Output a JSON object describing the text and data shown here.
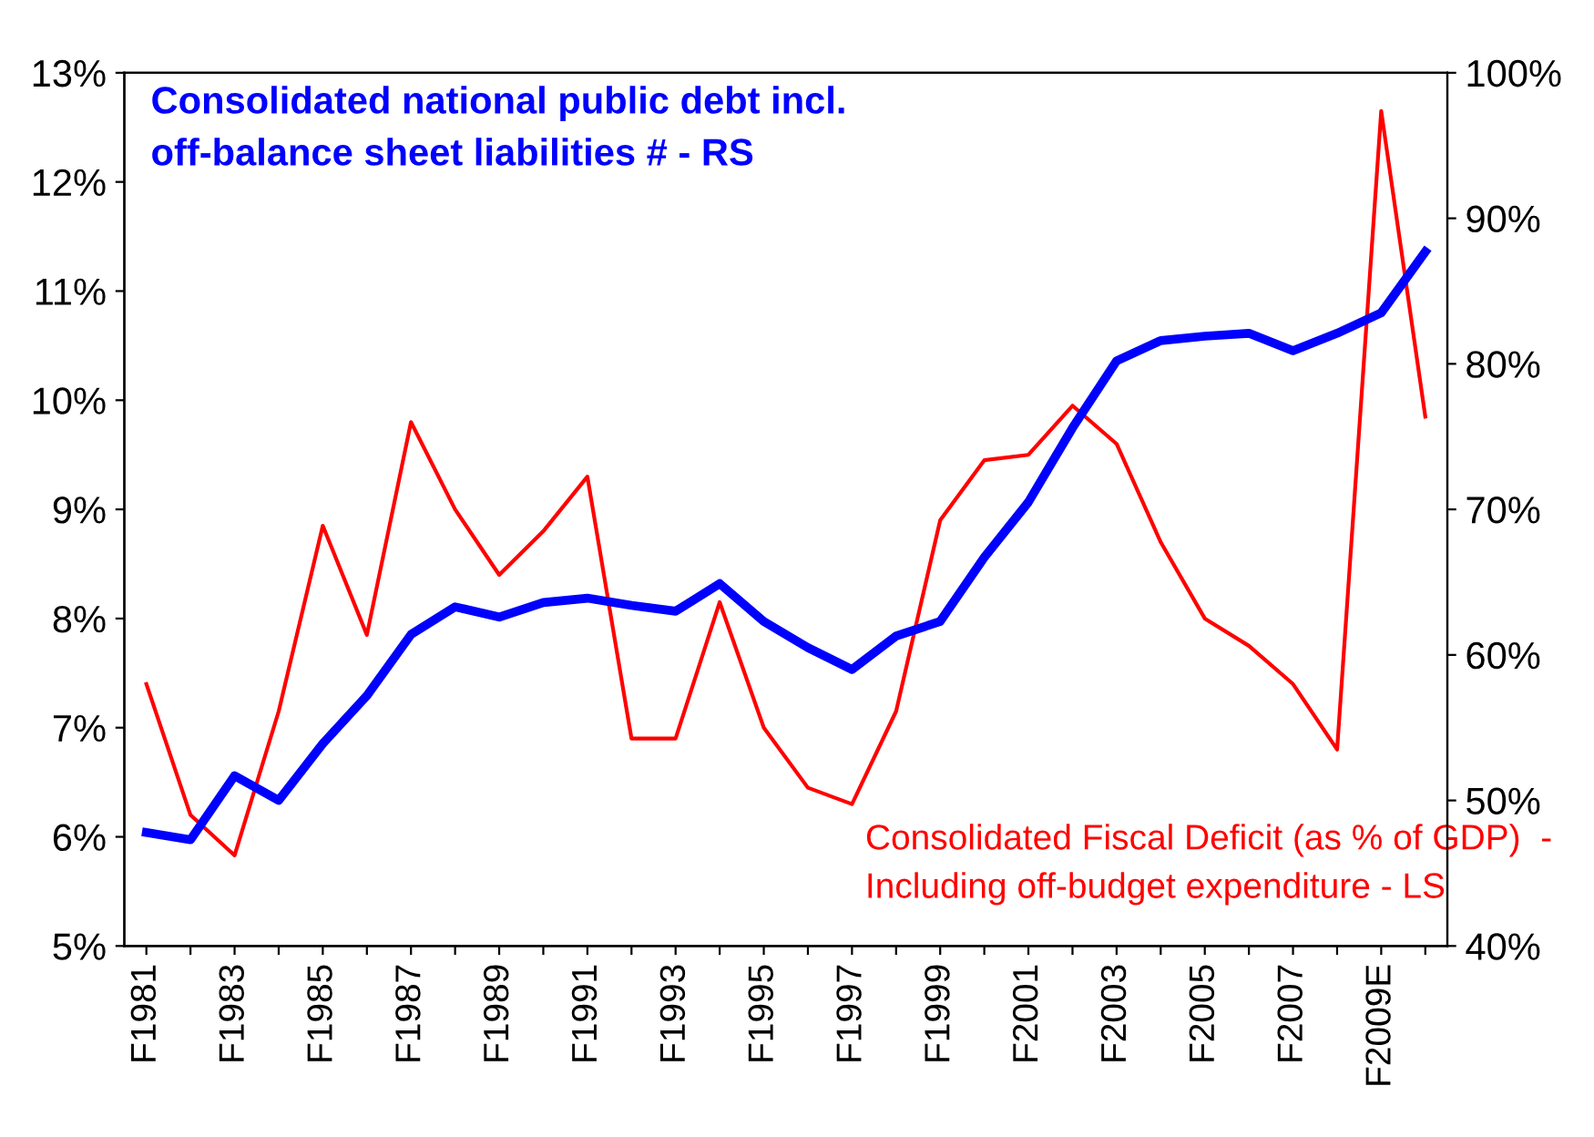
{
  "chart_data": {
    "type": "line",
    "categories": [
      "F1981",
      null,
      "F1983",
      null,
      "F1985",
      null,
      "F1987",
      null,
      "F1989",
      null,
      "F1991",
      null,
      "F1993",
      null,
      "F1995",
      null,
      "F1997",
      null,
      "F1999",
      null,
      "F2001",
      null,
      "F2003",
      null,
      "F2005",
      null,
      "F2007",
      null,
      "F2009E",
      null
    ],
    "series": [
      {
        "name": "Consolidated Fiscal Deficit (as % of GDP)  -\nIncluding off-budget expenditure - LS",
        "color": "#ff0000",
        "values": [
          7.4,
          6.2,
          5.83,
          7.15,
          8.85,
          7.85,
          9.8,
          9.0,
          8.4,
          8.8,
          9.3,
          6.9,
          6.9,
          8.15,
          7.0,
          6.45,
          6.3,
          7.15,
          8.9,
          9.45,
          9.5,
          9.95,
          9.6,
          8.7,
          8.0,
          7.75,
          7.4,
          6.8,
          12.65,
          9.85
        ]
      },
      {
        "name": "Consolidated national public debt incl.\noff-balance sheet liabilities # - RS",
        "color": "#0000ff",
        "axis": "y2",
        "values": [
          47.8,
          47.3,
          51.7,
          50.0,
          53.9,
          57.2,
          61.4,
          63.3,
          62.6,
          63.6,
          63.9,
          63.4,
          63.0,
          64.9,
          62.3,
          60.5,
          59.0,
          61.3,
          62.3,
          66.7,
          70.5,
          75.6,
          80.2,
          81.6,
          81.9,
          82.1,
          80.9,
          82.1,
          83.5,
          87.7
        ]
      }
    ],
    "ylim": [
      5,
      13
    ],
    "yticks": [
      {
        "value": 5,
        "label": "5%"
      },
      {
        "value": 6,
        "label": "6%"
      },
      {
        "value": 7,
        "label": "7%"
      },
      {
        "value": 8,
        "label": "8%"
      },
      {
        "value": 9,
        "label": "9%"
      },
      {
        "value": 10,
        "label": "10%"
      },
      {
        "value": 11,
        "label": "11%"
      },
      {
        "value": 12,
        "label": "12%"
      },
      {
        "value": 13,
        "label": "13%"
      }
    ],
    "y2lim": [
      40,
      100
    ],
    "y2ticks": [
      {
        "value": 40,
        "label": "40%"
      },
      {
        "value": 50,
        "label": "50%"
      },
      {
        "value": 60,
        "label": "60%"
      },
      {
        "value": 70,
        "label": "70%"
      },
      {
        "value": 80,
        "label": "80%"
      },
      {
        "value": 90,
        "label": "90%"
      },
      {
        "value": 100,
        "label": "100%"
      }
    ],
    "grid": false,
    "legend": false,
    "marker": "none",
    "line_style": "solid"
  }
}
